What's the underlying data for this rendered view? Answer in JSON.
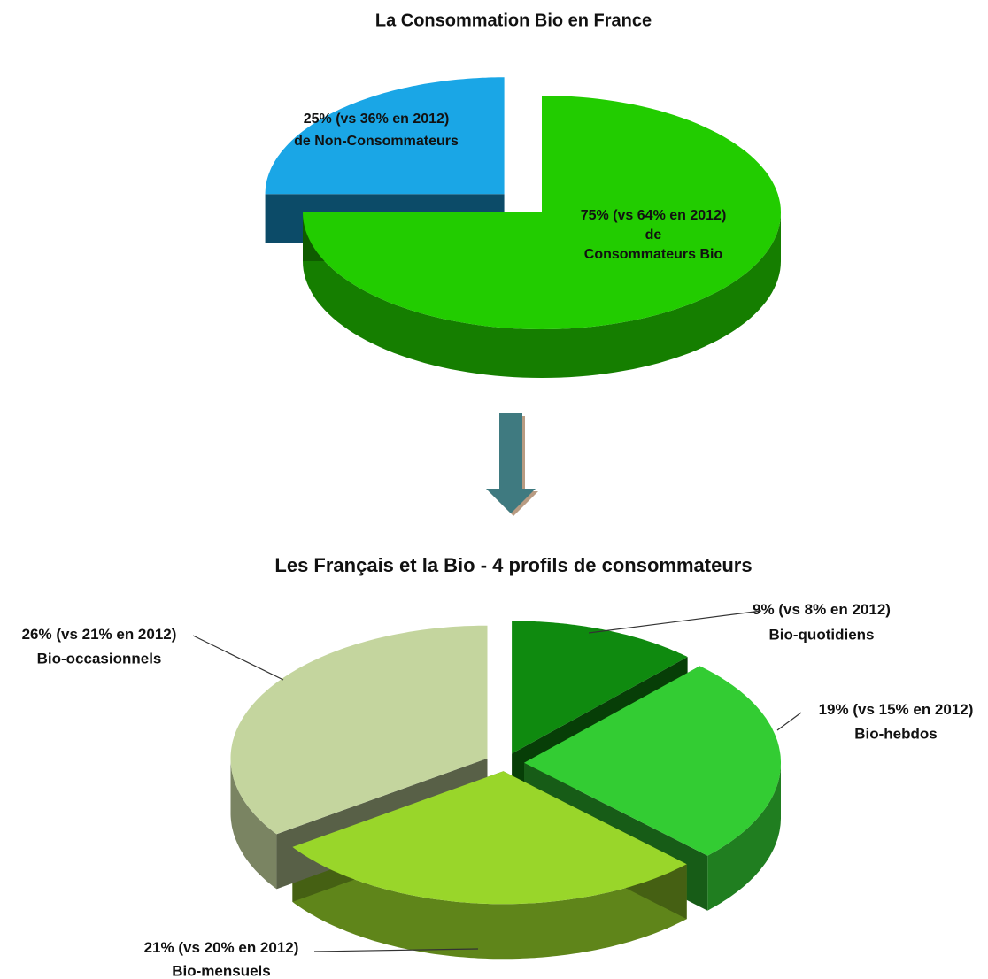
{
  "chart_data": [
    {
      "type": "pie",
      "title": "La Consommation Bio en France",
      "categories": [
        [
          "de Non-Consommateurs"
        ],
        [
          "de",
          "Consommateurs Bio"
        ]
      ],
      "values": [
        25,
        75
      ],
      "value_labels": [
        "25%",
        "75%"
      ],
      "previous_labels": [
        "(vs 36% en 2012)",
        "(vs 64% en 2012)"
      ],
      "colors": [
        "#1aa6e6",
        "#22cc00"
      ]
    },
    {
      "type": "pie",
      "title": "Les Français et la Bio - 4 profils de consommateurs",
      "categories": [
        [
          "Bio-quotidiens"
        ],
        [
          "Bio-hebdos"
        ],
        [
          "Bio-mensuels"
        ],
        [
          "Bio-occasionnels"
        ]
      ],
      "values": [
        9,
        19,
        21,
        26
      ],
      "value_labels": [
        "9%",
        "19%",
        "21%",
        "26%"
      ],
      "previous_labels": [
        "(vs 8% en 2012)",
        "(vs 15% en 2012)",
        "(vs 20% en 2012)",
        "(vs 21% en 2012)"
      ],
      "colors": [
        "#0f8a0f",
        "#33cc33",
        "#99d62a",
        "#c4d59e"
      ]
    }
  ]
}
